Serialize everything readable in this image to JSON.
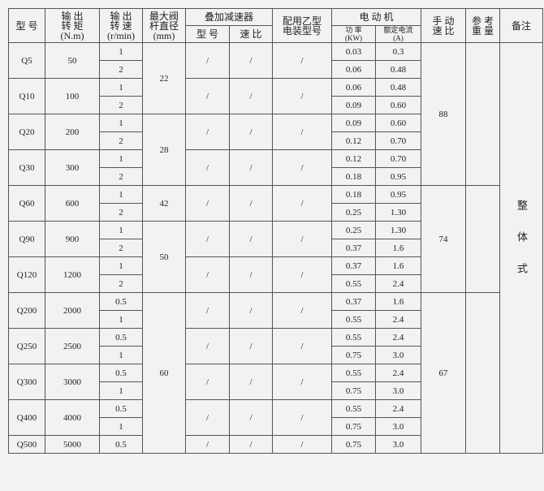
{
  "header": {
    "model": "型 号",
    "torque": [
      "输 出",
      "转 矩",
      "(N.m)"
    ],
    "speed": [
      "输 出",
      "转 速",
      "(r/min)"
    ],
    "stem": [
      "最大阀",
      "杆直径",
      "(mm)"
    ],
    "reducer": "叠加减速器",
    "reducer_model": "型 号",
    "reducer_ratio": "速 比",
    "actuator": [
      "配用乙型",
      "电装型号"
    ],
    "motor": "电 动 机",
    "power": [
      "功 率",
      "(KW)"
    ],
    "current": [
      "额定电流",
      "(A)"
    ],
    "manual": [
      "手 动",
      "速 比"
    ],
    "weight": [
      "参 考",
      "重 量"
    ],
    "remark": "备注"
  },
  "remark_text": "整体式",
  "groups": [
    {
      "manual": "88",
      "stem_groups": [
        {
          "stem": "22",
          "models": [
            {
              "model": "Q5",
              "torque": "50",
              "reducer_model": "/",
              "reducer_ratio": "/",
              "actuator": "/",
              "sub": [
                {
                  "speed": "1",
                  "power": "0.03",
                  "current": "0.3"
                },
                {
                  "speed": "2",
                  "power": "0.06",
                  "current": "0.48"
                }
              ]
            },
            {
              "model": "Q10",
              "torque": "100",
              "reducer_model": "/",
              "reducer_ratio": "/",
              "actuator": "/",
              "sub": [
                {
                  "speed": "1",
                  "power": "0.06",
                  "current": "0.48"
                },
                {
                  "speed": "2",
                  "power": "0.09",
                  "current": "0.60"
                }
              ]
            }
          ]
        },
        {
          "stem": "28",
          "models": [
            {
              "model": "Q20",
              "torque": "200",
              "reducer_model": "/",
              "reducer_ratio": "/",
              "actuator": "/",
              "sub": [
                {
                  "speed": "1",
                  "power": "0.09",
                  "current": "0.60"
                },
                {
                  "speed": "2",
                  "power": "0.12",
                  "current": "0.70"
                }
              ]
            },
            {
              "model": "Q30",
              "torque": "300",
              "reducer_model": "/",
              "reducer_ratio": "/",
              "actuator": "/",
              "sub": [
                {
                  "speed": "1",
                  "power": "0.12",
                  "current": "0.70"
                },
                {
                  "speed": "2",
                  "power": "0.18",
                  "current": "0.95"
                }
              ]
            }
          ]
        }
      ]
    },
    {
      "manual": "74",
      "stem_groups": [
        {
          "stem": "42",
          "models": [
            {
              "model": "Q60",
              "torque": "600",
              "reducer_model": "/",
              "reducer_ratio": "/",
              "actuator": "/",
              "sub": [
                {
                  "speed": "1",
                  "power": "0.18",
                  "current": "0.95"
                },
                {
                  "speed": "2",
                  "power": "0.25",
                  "current": "1.30"
                }
              ]
            }
          ]
        },
        {
          "stem": "50",
          "models": [
            {
              "model": "Q90",
              "torque": "900",
              "reducer_model": "/",
              "reducer_ratio": "/",
              "actuator": "/",
              "sub": [
                {
                  "speed": "1",
                  "power": "0.25",
                  "current": "1.30"
                },
                {
                  "speed": "2",
                  "power": "0.37",
                  "current": "1.6"
                }
              ]
            },
            {
              "model": "Q120",
              "torque": "1200",
              "reducer_model": "/",
              "reducer_ratio": "/",
              "actuator": "/",
              "sub": [
                {
                  "speed": "1",
                  "power": "0.37",
                  "current": "1.6"
                },
                {
                  "speed": "2",
                  "power": "0.55",
                  "current": "2.4"
                }
              ]
            }
          ]
        }
      ]
    },
    {
      "manual": "67",
      "stem_groups": [
        {
          "stem": "60",
          "models": [
            {
              "model": "Q200",
              "torque": "2000",
              "reducer_model": "/",
              "reducer_ratio": "/",
              "actuator": "/",
              "sub": [
                {
                  "speed": "0.5",
                  "power": "0.37",
                  "current": "1.6"
                },
                {
                  "speed": "1",
                  "power": "0.55",
                  "current": "2.4"
                }
              ]
            },
            {
              "model": "Q250",
              "torque": "2500",
              "reducer_model": "/",
              "reducer_ratio": "/",
              "actuator": "/",
              "sub": [
                {
                  "speed": "0.5",
                  "power": "0.55",
                  "current": "2.4"
                },
                {
                  "speed": "1",
                  "power": "0.75",
                  "current": "3.0"
                }
              ]
            },
            {
              "model": "Q300",
              "torque": "3000",
              "reducer_model": "/",
              "reducer_ratio": "/",
              "actuator": "/",
              "sub": [
                {
                  "speed": "0.5",
                  "power": "0.55",
                  "current": "2.4"
                },
                {
                  "speed": "1",
                  "power": "0.75",
                  "current": "3.0"
                }
              ]
            },
            {
              "model": "Q400",
              "torque": "4000",
              "reducer_model": "/",
              "reducer_ratio": "/",
              "actuator": "/",
              "sub": [
                {
                  "speed": "0.5",
                  "power": "0.55",
                  "current": "2.4"
                },
                {
                  "speed": "1",
                  "power": "0.75",
                  "current": "3.0"
                }
              ]
            },
            {
              "model": "Q500",
              "torque": "5000",
              "reducer_model": "/",
              "reducer_ratio": "/",
              "actuator": "/",
              "sub": [
                {
                  "speed": "0.5",
                  "power": "0.75",
                  "current": "3.0"
                }
              ]
            }
          ]
        }
      ]
    }
  ]
}
